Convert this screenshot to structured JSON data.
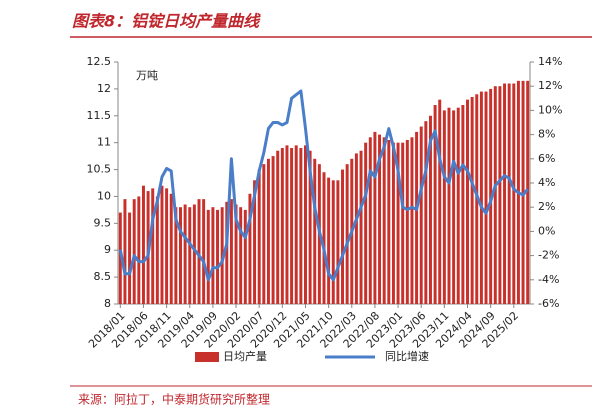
{
  "chart_data": {
    "type": "bar",
    "title": "图表8：铝锭日均产量曲线",
    "y_unit_label": "万吨",
    "source": "来源：阿拉丁，中泰期货研究所整理",
    "categories": [
      "2018/01",
      null,
      null,
      null,
      null,
      "2018/06",
      null,
      null,
      null,
      null,
      "2018/11",
      null,
      null,
      null,
      null,
      "2019/04",
      null,
      null,
      null,
      null,
      "2019/09",
      null,
      null,
      null,
      null,
      "2020/02",
      null,
      null,
      null,
      null,
      "2020/07",
      null,
      null,
      null,
      null,
      "2020/12",
      null,
      null,
      null,
      null,
      "2021/05",
      null,
      null,
      null,
      null,
      "2021/10",
      null,
      null,
      null,
      null,
      "2022/03",
      null,
      null,
      null,
      null,
      "2022/08",
      null,
      null,
      null,
      null,
      "2023/01",
      null,
      null,
      null,
      null,
      "2023/06",
      null,
      null,
      null,
      null,
      "2023/11",
      null,
      null,
      null,
      null,
      "2024/04",
      null,
      null,
      null,
      null,
      "2024/09",
      null,
      null,
      null,
      null,
      "2025/02",
      null,
      null,
      null
    ],
    "series": [
      {
        "name": "日均产量",
        "type": "bar",
        "color": "#c8302b",
        "values": [
          9.7,
          9.95,
          9.7,
          9.95,
          10.0,
          10.2,
          10.1,
          10.15,
          10.0,
          10.2,
          10.15,
          10.05,
          9.8,
          9.8,
          9.85,
          9.8,
          9.85,
          9.95,
          9.95,
          9.75,
          9.8,
          9.75,
          9.8,
          9.9,
          9.95,
          9.85,
          9.8,
          9.75,
          10.05,
          10.3,
          10.5,
          10.6,
          10.7,
          10.75,
          10.85,
          10.9,
          10.95,
          10.9,
          10.95,
          10.9,
          10.95,
          10.85,
          10.7,
          10.6,
          10.45,
          10.35,
          10.3,
          10.3,
          10.5,
          10.6,
          10.7,
          10.8,
          10.85,
          11.0,
          11.1,
          11.2,
          11.15,
          11.1,
          11.05,
          11.0,
          11.0,
          11.0,
          11.05,
          11.1,
          11.2,
          11.3,
          11.4,
          11.5,
          11.7,
          11.8,
          11.6,
          11.65,
          11.6,
          11.65,
          11.7,
          11.8,
          11.85,
          11.9,
          11.95,
          11.95,
          12.0,
          12.05,
          12.05,
          12.1,
          12.1,
          12.1,
          12.15,
          12.15,
          12.15
        ]
      },
      {
        "name": "同比增速",
        "type": "line",
        "axis": "y2",
        "color": "#4a7ec8",
        "values": [
          -1.5,
          -3.5,
          -3.5,
          -2,
          -2.5,
          -2.5,
          -2,
          1,
          2.5,
          4.5,
          5.2,
          5,
          1,
          0,
          -0.5,
          -1,
          -1.5,
          -2,
          -2.5,
          -4,
          -3,
          -3,
          -2.5,
          -1,
          6,
          1,
          0,
          -0.5,
          1,
          3,
          5,
          6.5,
          8.5,
          9,
          9,
          8.8,
          9,
          11,
          11.3,
          11.6,
          8.5,
          5,
          2,
          0,
          -1.5,
          -3.5,
          -4,
          -3,
          -2,
          -1,
          0,
          1,
          2,
          3,
          5,
          4.5,
          6,
          7,
          8.5,
          7,
          5,
          2,
          1.8,
          2,
          1.8,
          3.5,
          5,
          7.5,
          8.3,
          6,
          4.5,
          4,
          5.8,
          4.8,
          5.5,
          5,
          4,
          3,
          2,
          1.5,
          2.5,
          3.8,
          4.2,
          4.6,
          4.4,
          3.5,
          3.2,
          3,
          3.5
        ]
      }
    ],
    "ylim": [
      8,
      12.5
    ],
    "yticks": [
      8,
      8.5,
      9,
      9.5,
      10,
      10.5,
      11,
      11.5,
      12,
      12.5
    ],
    "y2lim": [
      -6,
      14
    ],
    "y2ticks": [
      {
        "value": -6,
        "label": "-6%"
      },
      {
        "value": -4,
        "label": "-4%"
      },
      {
        "value": -2,
        "label": "-2%"
      },
      {
        "value": 0,
        "label": "0%"
      },
      {
        "value": 2,
        "label": "2%"
      },
      {
        "value": 4,
        "label": "4%"
      },
      {
        "value": 6,
        "label": "6%"
      },
      {
        "value": 8,
        "label": "8%"
      },
      {
        "value": 10,
        "label": "10%"
      },
      {
        "value": 12,
        "label": "12%"
      },
      {
        "value": 14,
        "label": "14%"
      }
    ]
  }
}
